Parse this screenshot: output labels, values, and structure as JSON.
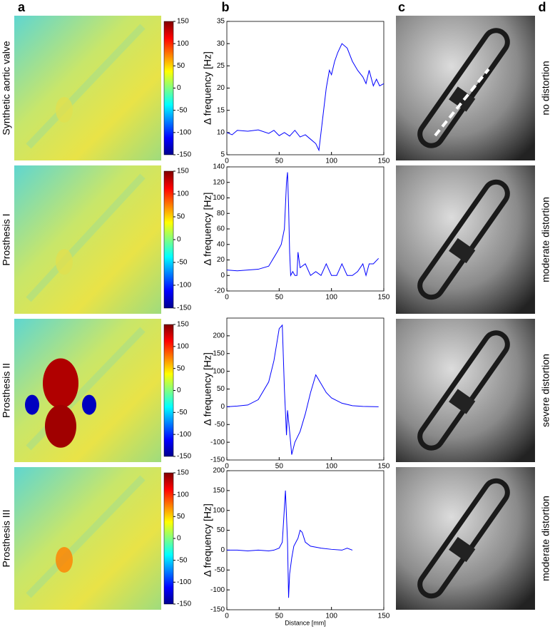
{
  "panels": [
    "a",
    "b",
    "c",
    "d"
  ],
  "rows": [
    {
      "label": "Synthetic aortic valve",
      "distortion": "no distortion"
    },
    {
      "label": "Prosthesis I",
      "distortion": "moderate distortion"
    },
    {
      "label": "Prosthesis II",
      "distortion": "severe distortion"
    },
    {
      "label": "Prosthesis III",
      "distortion": "moderate distortion"
    }
  ],
  "colorbar": {
    "lim": [
      -150,
      150
    ],
    "ticks": [
      150,
      100,
      50,
      0,
      -50,
      -100,
      -150
    ]
  },
  "chart_data": [
    {
      "type": "line",
      "ylabel": "Δ frequency [Hz]",
      "color": "#0000ff",
      "x": [
        0,
        5,
        10,
        20,
        30,
        40,
        45,
        50,
        55,
        60,
        65,
        70,
        75,
        80,
        85,
        88,
        91,
        95,
        98,
        100,
        103,
        106,
        110,
        115,
        120,
        125,
        130,
        133,
        136,
        140,
        143,
        146,
        150
      ],
      "values": [
        10,
        9.5,
        10.5,
        10.3,
        10.6,
        9.8,
        10.5,
        9.3,
        10,
        9.2,
        10.5,
        9,
        9.5,
        8.5,
        7.5,
        6,
        12,
        20,
        24,
        23,
        26,
        28,
        30,
        29,
        26,
        24,
        22.5,
        21,
        24,
        20.5,
        22,
        20.5,
        21
      ],
      "xlim": [
        0,
        150
      ],
      "xticks": [
        0,
        50,
        100,
        150
      ],
      "ylim": [
        5,
        35
      ],
      "yticks": [
        5,
        10,
        15,
        20,
        25,
        30,
        35
      ]
    },
    {
      "type": "line",
      "ylabel": "Δ frequency [Hz]",
      "color": "#0000ff",
      "x": [
        0,
        10,
        20,
        30,
        40,
        48,
        52,
        55,
        57,
        58,
        59,
        60,
        61,
        63,
        65,
        67,
        68,
        70,
        75,
        80,
        85,
        90,
        95,
        100,
        105,
        110,
        115,
        120,
        125,
        130,
        133,
        136,
        140,
        145
      ],
      "values": [
        7,
        6,
        7,
        8,
        12,
        30,
        40,
        60,
        120,
        133,
        90,
        30,
        0,
        5,
        0,
        0,
        30,
        10,
        15,
        0,
        5,
        0,
        15,
        0,
        0,
        15,
        0,
        0,
        5,
        15,
        0,
        15,
        15,
        22
      ],
      "xlim": [
        0,
        150
      ],
      "xticks": [
        0,
        50,
        100,
        150
      ],
      "ylim": [
        -20,
        140
      ],
      "yticks": [
        -20,
        0,
        20,
        40,
        60,
        80,
        100,
        120,
        140
      ]
    },
    {
      "type": "line",
      "ylabel": "Δ frequency [Hz]",
      "color": "#0000ff",
      "x": [
        0,
        10,
        20,
        30,
        40,
        45,
        50,
        53,
        55,
        57,
        58,
        60,
        62,
        65,
        70,
        75,
        80,
        82,
        85,
        90,
        95,
        100,
        110,
        120,
        130,
        145
      ],
      "values": [
        0,
        2,
        5,
        20,
        70,
        130,
        220,
        230,
        50,
        -80,
        -10,
        -70,
        -135,
        -100,
        -70,
        -20,
        40,
        60,
        90,
        65,
        40,
        25,
        10,
        3,
        1,
        0
      ],
      "xlim": [
        0,
        150
      ],
      "xticks": [
        0,
        50,
        100,
        150
      ],
      "ylim": [
        -150,
        250
      ],
      "yticks": [
        -150,
        -100,
        -50,
        0,
        50,
        100,
        150,
        200
      ]
    },
    {
      "type": "line",
      "ylabel": "Δ frequency [Hz]",
      "xlabel": "Distance [mm]",
      "color": "#0000ff",
      "x": [
        0,
        10,
        20,
        30,
        40,
        45,
        50,
        53,
        56,
        58,
        59,
        60,
        62,
        64,
        66,
        68,
        70,
        72,
        75,
        80,
        90,
        100,
        110,
        115,
        120
      ],
      "values": [
        0,
        0,
        -2,
        0,
        -2,
        0,
        5,
        20,
        150,
        20,
        -120,
        -60,
        -20,
        10,
        20,
        30,
        50,
        45,
        20,
        10,
        5,
        2,
        0,
        5,
        0
      ],
      "xlim": [
        0,
        150
      ],
      "xticks": [
        0,
        50,
        100,
        150
      ],
      "ylim": [
        -150,
        200
      ],
      "yticks": [
        -150,
        -100,
        -50,
        0,
        50,
        100,
        150,
        200
      ]
    }
  ]
}
